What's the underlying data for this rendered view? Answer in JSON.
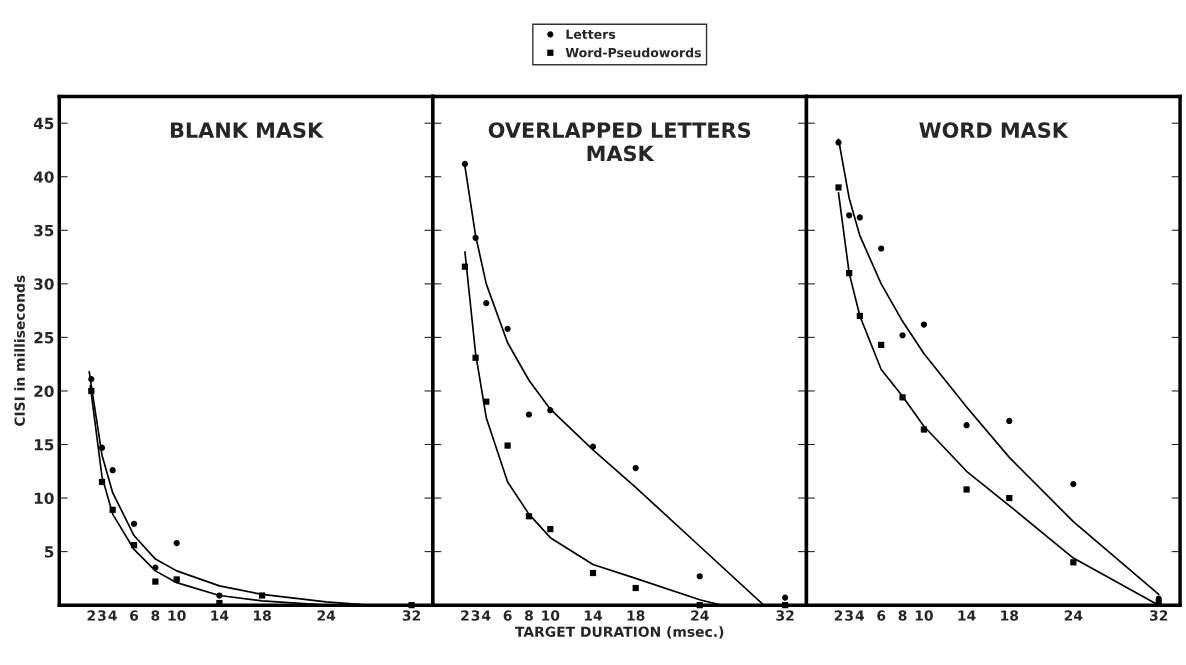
{
  "chart_data": [
    {
      "type": "scatter",
      "title": "BLANK MASK",
      "ylabel": "CISI in milliseconds",
      "xlim": [
        -1,
        34
      ],
      "ylim": [
        0,
        47.5
      ],
      "xticks": [
        2,
        3,
        4,
        6,
        8,
        10,
        14,
        18,
        24,
        32
      ],
      "yticks": [
        5,
        10,
        15,
        20,
        25,
        30,
        35,
        40,
        45
      ],
      "grid": false,
      "legend": false,
      "series": [
        {
          "color": "#000000",
          "marker": "circle",
          "x": [
            2,
            3,
            4,
            6,
            8,
            10,
            14
          ],
          "values": [
            21.1,
            14.7,
            12.6,
            7.6,
            3.5,
            5.8,
            0.9
          ]
        },
        {
          "color": "#000000",
          "marker": "square",
          "x": [
            2,
            3,
            4,
            6,
            8,
            10,
            14,
            18,
            32
          ],
          "values": [
            20.0,
            11.5,
            8.9,
            5.6,
            2.2,
            2.4,
            0.2,
            0.9,
            0
          ]
        },
        {
          "type": "line",
          "color": "#000000",
          "marker": "none",
          "x": [
            1.8,
            3,
            4,
            6,
            8,
            10,
            14,
            18,
            24,
            28
          ],
          "values": [
            21.8,
            14,
            10.5,
            6.5,
            4.3,
            3.2,
            1.8,
            1.0,
            0.3,
            0
          ]
        },
        {
          "type": "line",
          "color": "#000000",
          "marker": "none",
          "x": [
            1.9,
            3,
            4,
            6,
            8,
            10,
            14,
            18,
            24
          ],
          "values": [
            20.5,
            12,
            8.5,
            5.2,
            3.2,
            2.1,
            0.9,
            0.4,
            0
          ]
        }
      ]
    },
    {
      "type": "scatter",
      "title": "OVERLAPPED LETTERS\nMASK",
      "xlabel": "TARGET DURATION (msec.)",
      "xlim": [
        -1,
        34
      ],
      "ylim": [
        0,
        47.5
      ],
      "xticks": [
        2,
        3,
        4,
        6,
        8,
        10,
        14,
        18,
        24,
        32
      ],
      "yticks": [
        5,
        10,
        15,
        20,
        25,
        30,
        35,
        40,
        45
      ],
      "tick_labels": "x",
      "grid": false,
      "legend": "top",
      "series": [
        {
          "name": "Letters",
          "color": "#000000",
          "marker": "circle",
          "x": [
            2,
            3,
            4,
            6,
            8,
            10,
            14,
            18,
            24,
            32
          ],
          "values": [
            41.2,
            34.3,
            28.2,
            25.8,
            17.8,
            18.2,
            14.8,
            12.8,
            2.7,
            0.7
          ]
        },
        {
          "name": "Word-Pseudowords",
          "color": "#000000",
          "marker": "square",
          "x": [
            2,
            3,
            4,
            6,
            8,
            10,
            14,
            18,
            24,
            32
          ],
          "values": [
            31.6,
            23.1,
            19.0,
            14.9,
            8.3,
            7.1,
            3.0,
            1.6,
            0,
            0
          ]
        },
        {
          "type": "line",
          "color": "#000000",
          "marker": "none",
          "x": [
            2,
            3,
            4,
            6,
            8,
            10,
            14,
            18,
            24,
            30
          ],
          "values": [
            41,
            34.5,
            30,
            24.5,
            21,
            18.3,
            14.5,
            11,
            5.5,
            0
          ]
        },
        {
          "type": "line",
          "color": "#000000",
          "marker": "none",
          "x": [
            2,
            3,
            4,
            6,
            8,
            10,
            14,
            18,
            24,
            26
          ],
          "values": [
            33,
            23.5,
            17.5,
            11.5,
            8.5,
            6.3,
            3.8,
            2.5,
            0.5,
            0
          ]
        }
      ]
    },
    {
      "type": "scatter",
      "title": "WORD MASK",
      "xlim": [
        -1,
        34
      ],
      "ylim": [
        0,
        47.5
      ],
      "xticks": [
        2,
        3,
        4,
        6,
        8,
        10,
        14,
        18,
        24,
        32
      ],
      "yticks": [
        5,
        10,
        15,
        20,
        25,
        30,
        35,
        40,
        45
      ],
      "tick_labels": "x",
      "grid": false,
      "legend": false,
      "series": [
        {
          "color": "#000000",
          "marker": "circle",
          "x": [
            2,
            3,
            4,
            6,
            8,
            10,
            14,
            18,
            24,
            32
          ],
          "values": [
            43.2,
            36.4,
            36.2,
            33.3,
            25.2,
            26.2,
            16.8,
            17.2,
            11.3,
            0.6
          ]
        },
        {
          "color": "#000000",
          "marker": "square",
          "x": [
            2,
            3,
            4,
            6,
            8,
            10,
            14,
            18,
            24,
            32
          ],
          "values": [
            39.0,
            31.0,
            27.0,
            24.3,
            19.4,
            16.4,
            10.8,
            10.0,
            4.0,
            0.2
          ]
        },
        {
          "type": "line",
          "color": "#000000",
          "marker": "none",
          "x": [
            2,
            3,
            4,
            6,
            8,
            10,
            14,
            18,
            24,
            32
          ],
          "values": [
            43.5,
            38,
            34.5,
            30,
            26.5,
            23.5,
            18.5,
            13.8,
            7.8,
            1
          ]
        },
        {
          "type": "line",
          "color": "#000000",
          "marker": "none",
          "x": [
            2,
            3,
            4,
            6,
            8,
            10,
            14,
            18,
            24,
            32
          ],
          "values": [
            38.5,
            31,
            27,
            22,
            19.5,
            16.7,
            12.5,
            9.3,
            4.4,
            0
          ]
        }
      ]
    }
  ]
}
